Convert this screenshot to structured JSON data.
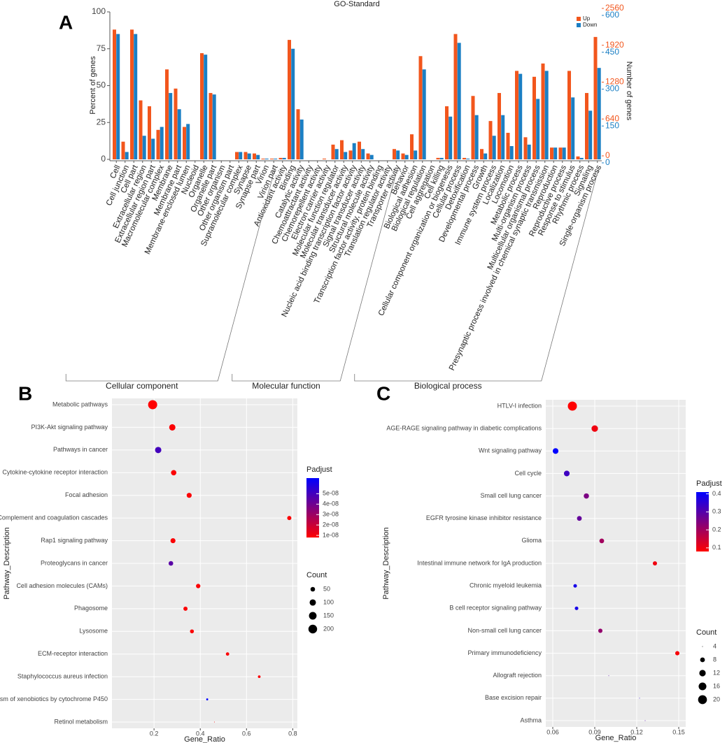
{
  "chart_data": [
    {
      "type": "bar",
      "panel": "A",
      "title": "GO-Standard",
      "ylabel": "Percent of genes",
      "y2label": "Number of genes",
      "ylim": [
        0,
        100
      ],
      "yticks": [
        0,
        25,
        50,
        75,
        100
      ],
      "y2lim": [
        0,
        2560
      ],
      "y2ticks": [
        0,
        640,
        1280,
        1920,
        2560
      ],
      "y3lim": [
        0,
        600
      ],
      "y3ticks": [
        0,
        150,
        300,
        450,
        600
      ],
      "categories": [
        "Cell",
        "Cell junction",
        "Cell part",
        "Extracellular region",
        "Extracellular region part",
        "Macromolecular complex",
        "Membrane",
        "Membrane part",
        "Membrane-enclosed lumen",
        "Nucleoid",
        "Organelle",
        "Organelle part",
        "Other organism",
        "Other organism part",
        "Supramolecular complex",
        "Synapse",
        "Synapse part",
        "Virion",
        "Virion part",
        "Antioxidant activity",
        "Binding",
        "Catalytic activity",
        "Chemoattractant activity",
        "Chemorepellent activity",
        "Electron carrier activity",
        "Molecular function regulator",
        "Molecular transducer activity",
        "Nucleic acid binding transcription factor activity",
        "Signal transducer activity",
        "Structural molecule activity",
        "Transcription factor activity, protein binding",
        "Translation regulator activity",
        "Transporter activity",
        "Behavior",
        "Biological adhesion",
        "Biological regulation",
        "Cell aggregation",
        "Cell killing",
        "Cellular component organization or biogenesis",
        "Cellular process",
        "Detoxification",
        "Developmental process",
        "Growth",
        "Immune system process",
        "Localization",
        "Locomotion",
        "Metabolic process",
        "Multi-organism process",
        "Multicellular organismal process",
        "Presynaptic process involved in chemical synaptic transmission",
        "Reproduction",
        "Reproductive process",
        "Response to stimulus",
        "Rhythmic process",
        "Signaling",
        "Single-organism process"
      ],
      "series": [
        {
          "name": "Up",
          "color": "#f2561d",
          "values": [
            88,
            12,
            88,
            40,
            36,
            20,
            61,
            48,
            22,
            0,
            72,
            45,
            0,
            0,
            5,
            5,
            4,
            0.5,
            0.5,
            1,
            81,
            34,
            0,
            0,
            0.5,
            10,
            13,
            6,
            12,
            4,
            0,
            0,
            7,
            4,
            17,
            70,
            0,
            1,
            36,
            85,
            1,
            43,
            7,
            26,
            45,
            18,
            60,
            15,
            56,
            65,
            8,
            8,
            60,
            2,
            45,
            83
          ]
        },
        {
          "name": "Down",
          "color": "#1b7fc4",
          "values": [
            85,
            5,
            85,
            16,
            14,
            22,
            45,
            34,
            24,
            0,
            71,
            44,
            0,
            0,
            5,
            4,
            3,
            0.5,
            0.5,
            1,
            75,
            27,
            0,
            0,
            0,
            7,
            5,
            11,
            7,
            3,
            0,
            0,
            6,
            3,
            6,
            61,
            0,
            1,
            29,
            79,
            0.5,
            30,
            4,
            16,
            30,
            9,
            58,
            10,
            41,
            60,
            8,
            8,
            42,
            1,
            33,
            62
          ]
        }
      ],
      "groups": [
        {
          "label": "Cellular component",
          "first": 0,
          "last": 18
        },
        {
          "label": "Molecular function",
          "first": 19,
          "last": 32
        },
        {
          "label": "Biological process",
          "first": 33,
          "last": 55
        }
      ]
    },
    {
      "type": "dot",
      "panel": "B",
      "xlabel": "Gene_Ratio",
      "ylabel": "Pathway_Description",
      "categories": [
        "Metabolic pathways",
        "PI3K-Akt signaling pathway",
        "Pathways in cancer",
        "Cytokine-cytokine receptor interaction",
        "Focal adhesion",
        "Complement and coagulation cascades",
        "Rap1 signaling pathway",
        "Proteoglycans in cancer",
        "Cell adhesion molecules (CAMs)",
        "Phagosome",
        "Lysosome",
        "ECM-receptor interaction",
        "Staphylococcus aureus infection",
        "Metabolism of xenobiotics by cytochrome P450",
        "Retinol metabolism"
      ],
      "values": [
        0.194,
        0.279,
        0.218,
        0.285,
        0.352,
        0.785,
        0.282,
        0.273,
        0.391,
        0.336,
        0.364,
        0.518,
        0.655,
        0.43,
        0.461
      ],
      "counts": [
        220,
        100,
        100,
        70,
        60,
        40,
        60,
        50,
        45,
        40,
        35,
        25,
        15,
        8,
        3
      ],
      "padj": [
        8e-09,
        9e-09,
        5e-08,
        9e-09,
        9e-09,
        9e-09,
        9e-09,
        4.5e-08,
        9e-09,
        9e-09,
        9e-09,
        9e-09,
        9e-09,
        6.5e-08,
        9e-09
      ],
      "xlim": [
        0.018,
        0.82
      ],
      "xticks": [
        0.2,
        0.4,
        0.6,
        0.8
      ],
      "color_title": "Padjust",
      "color_lim": [
        8e-09,
        6.5e-08
      ],
      "colors": [
        "#ff0000",
        "#0000ff"
      ],
      "color_ticks": [
        {
          "value": 1e-08,
          "label": "1e-08"
        },
        {
          "value": 2e-08,
          "label": "2e-08"
        },
        {
          "value": 3e-08,
          "label": "3e-08"
        },
        {
          "value": 4e-08,
          "label": "4e-08"
        },
        {
          "value": 5e-08,
          "label": "5e-08"
        }
      ],
      "size_title": "Count",
      "size_ticks": [
        50,
        100,
        150,
        200
      ]
    },
    {
      "type": "dot",
      "panel": "C",
      "xlabel": "Gene_Ratio",
      "ylabel": "Pathway_Description",
      "categories": [
        "HTLV-I infection",
        "AGE-RAGE signaling pathway in diabetic complications",
        "Wnt signaling pathway",
        "Cell cycle",
        "Small cell lung cancer",
        "EGFR tyrosine kinase inhibitor resistance",
        "Glioma",
        "Intestinal immune network for IgA production",
        "Chronic myeloid leukemia",
        "B cell receptor signaling pathway",
        "Non-small cell lung cancer",
        "Primary immunodeficiency",
        "Allograft rejection",
        "Base excision repair",
        "Asthma"
      ],
      "values": [
        0.074,
        0.09,
        0.062,
        0.07,
        0.084,
        0.079,
        0.095,
        0.133,
        0.076,
        0.077,
        0.094,
        0.149,
        0.1,
        0.122,
        0.126
      ],
      "counts": [
        21,
        12,
        10,
        10,
        9,
        8,
        8,
        7,
        6,
        6,
        7,
        7,
        4,
        4,
        4
      ],
      "padj": [
        0.08,
        0.1,
        0.41,
        0.33,
        0.25,
        0.28,
        0.2,
        0.1,
        0.38,
        0.38,
        0.22,
        0.09,
        0.3,
        0.35,
        0.3
      ],
      "xlim": [
        0.055,
        0.155
      ],
      "xticks": [
        0.06,
        0.09,
        0.12,
        0.15
      ],
      "color_title": "Padjust",
      "color_lim": [
        0.08,
        0.41
      ],
      "colors": [
        "#ff0000",
        "#0000ff"
      ],
      "color_ticks": [
        0.1,
        0.2,
        0.3,
        0.4
      ],
      "size_title": "Count",
      "size_ticks": [
        4,
        8,
        12,
        16,
        20
      ]
    }
  ]
}
